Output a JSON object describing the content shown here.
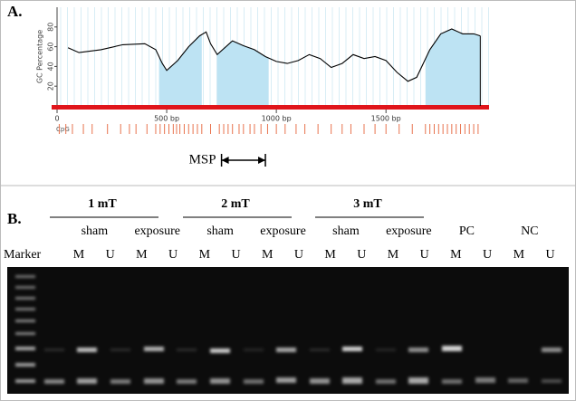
{
  "panel_a": {
    "label": "A."
  },
  "chart_data": {
    "type": "line",
    "ylabel": "GC Percentage",
    "x": [
      50,
      100,
      200,
      300,
      400,
      450,
      480,
      500,
      550,
      600,
      650,
      680,
      700,
      730,
      800,
      850,
      900,
      950,
      1000,
      1050,
      1100,
      1150,
      1200,
      1250,
      1300,
      1350,
      1400,
      1450,
      1500,
      1550,
      1600,
      1640,
      1700,
      1750,
      1800,
      1850,
      1900,
      1930
    ],
    "series": [
      {
        "color": "#000000",
        "values": [
          59,
          54,
          57,
          62,
          63,
          57,
          43,
          36,
          46,
          60,
          71,
          75,
          63,
          52,
          66,
          61,
          57,
          50,
          45,
          43,
          46,
          52,
          48,
          39,
          43,
          52,
          48,
          50,
          46,
          34,
          25,
          29,
          57,
          73,
          78,
          73,
          73,
          71
        ]
      }
    ],
    "xlim": [
      0,
      1970
    ],
    "xticks": [
      0,
      {
        "value": 500,
        "label": "500 bp"
      },
      {
        "value": 1000,
        "label": "1000 bp"
      },
      {
        "value": 1500,
        "label": "1500 bp"
      }
    ],
    "ylim": [
      0,
      100
    ],
    "yticks": [
      20,
      40,
      60,
      80
    ],
    "islands": [
      [
        465,
        660
      ],
      [
        730,
        965
      ],
      [
        1680,
        1930
      ]
    ],
    "island_color": "#bde3f3",
    "cpg_label": "CpG",
    "cpg_color": "#e8734e",
    "cpg_sites": [
      10,
      40,
      70,
      120,
      160,
      230,
      290,
      330,
      360,
      410,
      450,
      470,
      490,
      510,
      530,
      545,
      560,
      580,
      600,
      620,
      640,
      660,
      700,
      740,
      760,
      780,
      800,
      830,
      850,
      880,
      900,
      930,
      960,
      1000,
      1040,
      1090,
      1130,
      1190,
      1250,
      1300,
      1340,
      1400,
      1450,
      1500,
      1560,
      1620,
      1680,
      1700,
      1720,
      1740,
      1760,
      1780,
      1800,
      1820,
      1840,
      1860,
      1880,
      1900,
      1920
    ],
    "msp": {
      "label": "MSP",
      "range": [
        750,
        950
      ]
    }
  },
  "panel_b": {
    "label": "B.",
    "groups": [
      {
        "label": "1 mT",
        "sub": [
          "sham",
          "exposure"
        ]
      },
      {
        "label": "2 mT",
        "sub": [
          "sham",
          "exposure"
        ]
      },
      {
        "label": "3 mT",
        "sub": [
          "sham",
          "exposure"
        ]
      }
    ],
    "controls": [
      "PC",
      "NC"
    ],
    "marker": "Marker",
    "lanes": [
      "M",
      "U",
      "M",
      "U",
      "M",
      "U",
      "M",
      "U",
      "M",
      "U",
      "M",
      "U",
      "M",
      "U",
      "M",
      "U"
    ]
  }
}
